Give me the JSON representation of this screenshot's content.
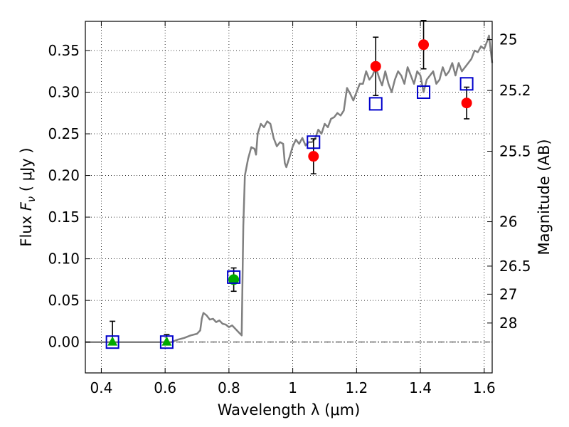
{
  "chart_data": {
    "type": "scatter",
    "xlabel": "Wavelength  λ (μm)",
    "ylabel": "Flux  F_ν  ( μJy )",
    "ylabel_right": "Magnitude (AB)",
    "xlim": [
      0.35,
      1.625
    ],
    "ylim": [
      -0.037,
      0.385
    ],
    "grid": true,
    "x_ticks": [
      {
        "value": 0.4,
        "label": "0.4"
      },
      {
        "value": 0.6,
        "label": "0.6"
      },
      {
        "value": 0.8,
        "label": "0.8"
      },
      {
        "value": 1.0,
        "label": "1"
      },
      {
        "value": 1.2,
        "label": "1.2"
      },
      {
        "value": 1.4,
        "label": "1.4"
      },
      {
        "value": 1.6,
        "label": "1.6"
      }
    ],
    "y_ticks": [
      {
        "value": 0.0,
        "label": "0.00"
      },
      {
        "value": 0.05,
        "label": "0.05"
      },
      {
        "value": 0.1,
        "label": "0.10"
      },
      {
        "value": 0.15,
        "label": "0.15"
      },
      {
        "value": 0.2,
        "label": "0.20"
      },
      {
        "value": 0.25,
        "label": "0.25"
      },
      {
        "value": 0.3,
        "label": "0.30"
      },
      {
        "value": 0.35,
        "label": "0.35"
      }
    ],
    "right_ticks": [
      {
        "flux": 0.3631,
        "label": "25"
      },
      {
        "flux": 0.302,
        "label": "25.2"
      },
      {
        "flux": 0.2291,
        "label": "25.5"
      },
      {
        "flux": 0.1445,
        "label": "26"
      },
      {
        "flux": 0.0912,
        "label": "26.5"
      },
      {
        "flux": 0.0575,
        "label": "27"
      },
      {
        "flux": 0.0229,
        "label": "28"
      }
    ],
    "series": [
      {
        "kind": "model_spectrum",
        "color": "#808080",
        "points": [
          [
            0.35,
            0.0
          ],
          [
            0.55,
            0.0
          ],
          [
            0.62,
            0.0
          ],
          [
            0.64,
            0.003
          ],
          [
            0.66,
            0.005
          ],
          [
            0.68,
            0.008
          ],
          [
            0.7,
            0.01
          ],
          [
            0.71,
            0.014
          ],
          [
            0.715,
            0.028
          ],
          [
            0.72,
            0.035
          ],
          [
            0.73,
            0.032
          ],
          [
            0.74,
            0.027
          ],
          [
            0.75,
            0.028
          ],
          [
            0.76,
            0.024
          ],
          [
            0.77,
            0.026
          ],
          [
            0.78,
            0.022
          ],
          [
            0.79,
            0.021
          ],
          [
            0.8,
            0.018
          ],
          [
            0.81,
            0.02
          ],
          [
            0.82,
            0.016
          ],
          [
            0.83,
            0.012
          ],
          [
            0.84,
            0.008
          ],
          [
            0.845,
            0.14
          ],
          [
            0.85,
            0.2
          ],
          [
            0.86,
            0.22
          ],
          [
            0.87,
            0.234
          ],
          [
            0.88,
            0.232
          ],
          [
            0.885,
            0.225
          ],
          [
            0.89,
            0.25
          ],
          [
            0.9,
            0.262
          ],
          [
            0.91,
            0.258
          ],
          [
            0.92,
            0.265
          ],
          [
            0.93,
            0.262
          ],
          [
            0.94,
            0.245
          ],
          [
            0.95,
            0.235
          ],
          [
            0.96,
            0.24
          ],
          [
            0.97,
            0.238
          ],
          [
            0.975,
            0.215
          ],
          [
            0.98,
            0.21
          ],
          [
            0.99,
            0.222
          ],
          [
            1.0,
            0.235
          ],
          [
            1.01,
            0.243
          ],
          [
            1.02,
            0.238
          ],
          [
            1.03,
            0.245
          ],
          [
            1.04,
            0.236
          ],
          [
            1.05,
            0.24
          ],
          [
            1.06,
            0.24
          ],
          [
            1.07,
            0.244
          ],
          [
            1.08,
            0.255
          ],
          [
            1.09,
            0.25
          ],
          [
            1.1,
            0.262
          ],
          [
            1.11,
            0.258
          ],
          [
            1.12,
            0.268
          ],
          [
            1.13,
            0.27
          ],
          [
            1.14,
            0.275
          ],
          [
            1.15,
            0.272
          ],
          [
            1.16,
            0.278
          ],
          [
            1.17,
            0.305
          ],
          [
            1.18,
            0.298
          ],
          [
            1.19,
            0.29
          ],
          [
            1.2,
            0.3
          ],
          [
            1.21,
            0.31
          ],
          [
            1.22,
            0.31
          ],
          [
            1.23,
            0.325
          ],
          [
            1.24,
            0.315
          ],
          [
            1.25,
            0.32
          ],
          [
            1.26,
            0.33
          ],
          [
            1.27,
            0.318
          ],
          [
            1.28,
            0.308
          ],
          [
            1.29,
            0.325
          ],
          [
            1.3,
            0.31
          ],
          [
            1.31,
            0.3
          ],
          [
            1.32,
            0.315
          ],
          [
            1.33,
            0.325
          ],
          [
            1.34,
            0.32
          ],
          [
            1.35,
            0.31
          ],
          [
            1.36,
            0.33
          ],
          [
            1.37,
            0.32
          ],
          [
            1.38,
            0.31
          ],
          [
            1.39,
            0.325
          ],
          [
            1.4,
            0.32
          ],
          [
            1.41,
            0.3
          ],
          [
            1.42,
            0.315
          ],
          [
            1.43,
            0.32
          ],
          [
            1.44,
            0.325
          ],
          [
            1.45,
            0.31
          ],
          [
            1.46,
            0.315
          ],
          [
            1.47,
            0.33
          ],
          [
            1.48,
            0.32
          ],
          [
            1.49,
            0.325
          ],
          [
            1.5,
            0.335
          ],
          [
            1.51,
            0.32
          ],
          [
            1.52,
            0.335
          ],
          [
            1.53,
            0.325
          ],
          [
            1.54,
            0.33
          ],
          [
            1.55,
            0.335
          ],
          [
            1.56,
            0.34
          ],
          [
            1.57,
            0.35
          ],
          [
            1.58,
            0.348
          ],
          [
            1.59,
            0.355
          ],
          [
            1.6,
            0.352
          ],
          [
            1.61,
            0.362
          ],
          [
            1.615,
            0.368
          ],
          [
            1.625,
            0.335
          ]
        ]
      },
      {
        "kind": "observed_detections",
        "marker": "circle",
        "color": "#ff0000",
        "points": [
          {
            "x": 1.065,
            "y": 0.223,
            "err": 0.021
          },
          {
            "x": 1.26,
            "y": 0.331,
            "err": 0.035
          },
          {
            "x": 1.41,
            "y": 0.357,
            "err": 0.029
          },
          {
            "x": 1.545,
            "y": 0.287,
            "err": 0.019
          }
        ]
      },
      {
        "kind": "observed_green",
        "marker": "circle",
        "color": "#00aa00",
        "points": [
          {
            "x": 0.815,
            "y": 0.075,
            "err": 0.014
          }
        ]
      },
      {
        "kind": "upper_limits",
        "marker": "triangle",
        "color": "#00aa00",
        "points": [
          {
            "x": 0.435,
            "y": 0.0,
            "err_up": 0.025
          },
          {
            "x": 0.605,
            "y": 0.0,
            "err_up": 0.009
          }
        ]
      },
      {
        "kind": "model_photometry",
        "marker": "square",
        "color": "#0000cc",
        "points": [
          {
            "x": 0.435,
            "y": 0.0
          },
          {
            "x": 0.605,
            "y": 0.0
          },
          {
            "x": 0.815,
            "y": 0.078
          },
          {
            "x": 1.065,
            "y": 0.24
          },
          {
            "x": 1.26,
            "y": 0.286
          },
          {
            "x": 1.41,
            "y": 0.3
          },
          {
            "x": 1.545,
            "y": 0.31
          }
        ]
      }
    ]
  }
}
